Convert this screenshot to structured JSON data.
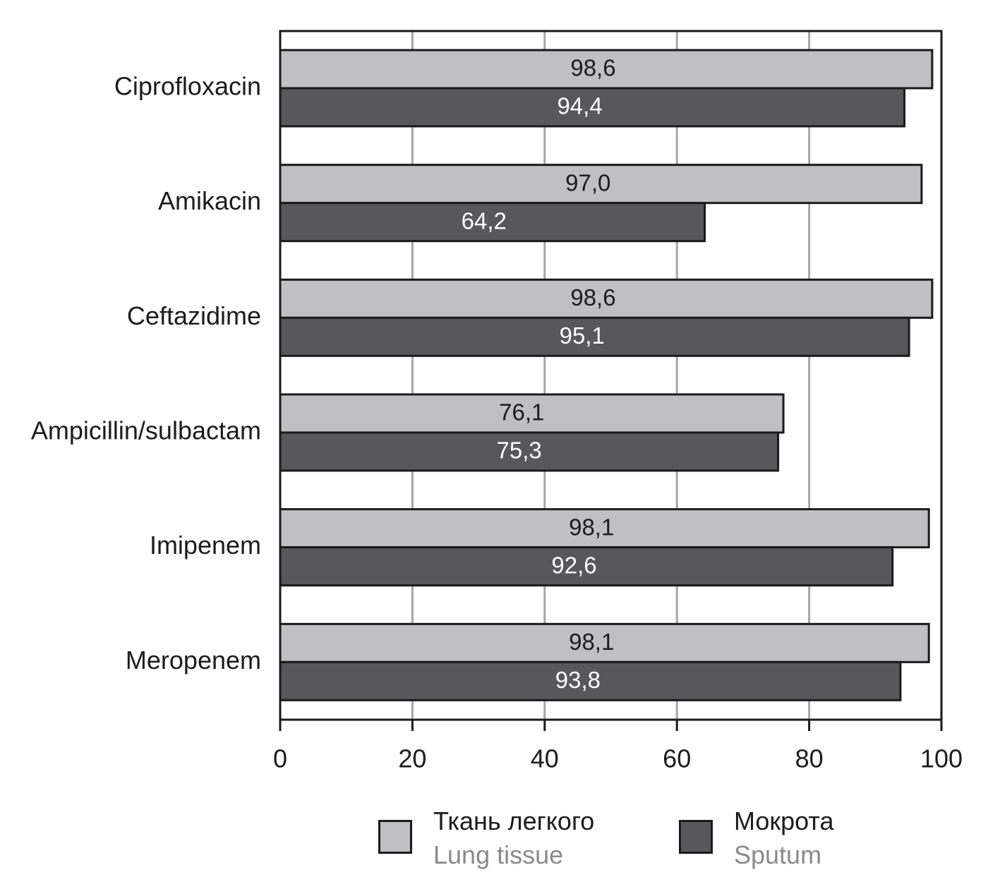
{
  "chart_data": {
    "type": "bar",
    "orientation": "horizontal",
    "categories": [
      "Ciprofloxacin",
      "Amikacin",
      "Ceftazidime",
      "Ampicillin/sulbactam",
      "Imipenem",
      "Meropenem"
    ],
    "series": [
      {
        "name": "Ткань легкого",
        "name_en": "Lung tissue",
        "color": "#c0c0c2",
        "label_color": "#1c1c1c",
        "values": [
          98.6,
          97.0,
          98.6,
          76.1,
          98.1,
          98.1
        ],
        "value_labels": [
          "98,6",
          "97,0",
          "98,6",
          "76,1",
          "98,1",
          "98,1"
        ]
      },
      {
        "name": "Мокрота",
        "name_en": "Sputum",
        "color": "#58585b",
        "label_color": "#ffffff",
        "values": [
          94.4,
          64.2,
          95.1,
          75.3,
          92.6,
          93.8
        ],
        "value_labels": [
          "94,4",
          "64,2",
          "95,1",
          "75,3",
          "92,6",
          "93,8"
        ]
      }
    ],
    "xlim": [
      0,
      100
    ],
    "xticks": [
      0,
      20,
      40,
      60,
      80,
      100
    ],
    "xtick_labels": [
      "0",
      "20",
      "40",
      "60",
      "80",
      "100"
    ],
    "grid": true,
    "legend_position": "bottom",
    "title": "",
    "xlabel": "",
    "ylabel": ""
  },
  "legend": {
    "items": [
      {
        "primary": "Ткань легкого",
        "secondary": "Lung tissue",
        "color": "#c0c0c2"
      },
      {
        "primary": "Мокрота",
        "secondary": "Sputum",
        "color": "#58585b"
      }
    ]
  }
}
